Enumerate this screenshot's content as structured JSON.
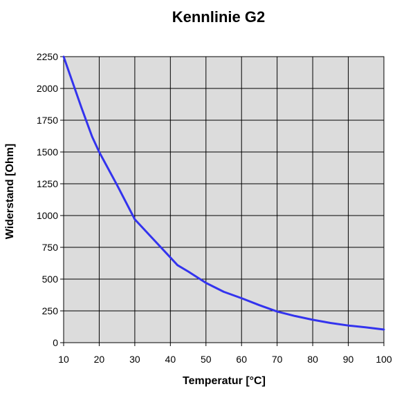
{
  "chart_data": {
    "type": "line",
    "title": "Kennlinie G2",
    "xlabel": "Temperatur [°C]",
    "ylabel": "Widerstand [Ohm]",
    "xlim": [
      10,
      100
    ],
    "ylim": [
      0,
      2250
    ],
    "x_ticks": [
      10,
      20,
      30,
      40,
      50,
      60,
      70,
      80,
      90,
      100
    ],
    "y_ticks": [
      0,
      250,
      500,
      750,
      1000,
      1250,
      1500,
      1750,
      2000,
      2250
    ],
    "grid": true,
    "series": [
      {
        "color": "#3333ee",
        "x": [
          10,
          15,
          18,
          20,
          25,
          30,
          35,
          40,
          42,
          45,
          50,
          55,
          60,
          65,
          70,
          75,
          80,
          85,
          90,
          95,
          100
        ],
        "y": [
          2250,
          1850,
          1620,
          1500,
          1240,
          970,
          820,
          670,
          610,
          560,
          470,
          400,
          350,
          295,
          245,
          210,
          180,
          155,
          135,
          120,
          103
        ]
      }
    ],
    "colors": {
      "plot_background": "#dcdcdc",
      "grid": "#000000"
    }
  }
}
